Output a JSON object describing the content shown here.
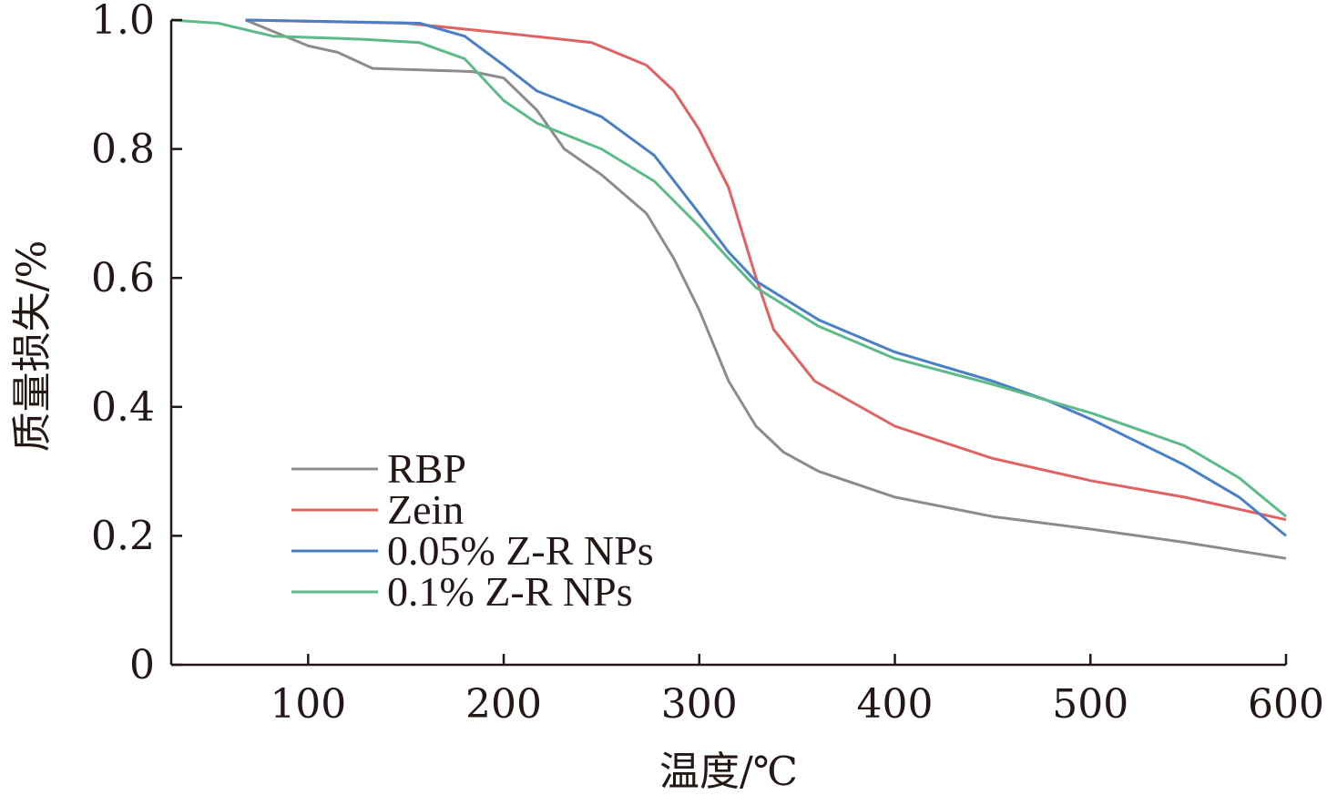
{
  "chart_data": {
    "type": "line",
    "xlabel": "温度/℃",
    "ylabel": "质量损失/%",
    "xlim": [
      30,
      600
    ],
    "ylim": [
      0,
      1.0
    ],
    "xticks": [
      100,
      200,
      300,
      400,
      500,
      600
    ],
    "xtick_labels": [
      "100",
      "200",
      "300",
      "400",
      "500",
      "600"
    ],
    "yticks": [
      0,
      0.2,
      0.4,
      0.6,
      0.8,
      1.0
    ],
    "ytick_labels": [
      "0",
      "0.2",
      "0.4",
      "0.6",
      "0.8",
      "1.0"
    ],
    "grid": false,
    "legend_placement": "bottom-left",
    "series": [
      {
        "name": "RBP",
        "color": "#8c8c8c",
        "x": [
          68,
          100,
          115,
          133,
          184,
          200,
          217,
          231,
          250,
          273,
          287,
          300,
          315,
          329,
          343,
          361,
          400,
          450,
          501,
          548,
          600
        ],
        "y": [
          1.0,
          0.96,
          0.95,
          0.925,
          0.92,
          0.91,
          0.86,
          0.8,
          0.76,
          0.7,
          0.63,
          0.55,
          0.44,
          0.37,
          0.33,
          0.3,
          0.26,
          0.23,
          0.21,
          0.19,
          0.165
        ]
      },
      {
        "name": "Zein",
        "color": "#e06262",
        "x": [
          68,
          150,
          200,
          245,
          273,
          287,
          300,
          315,
          329,
          338,
          359,
          400,
          450,
          501,
          548,
          600
        ],
        "y": [
          1.0,
          0.995,
          0.98,
          0.965,
          0.93,
          0.89,
          0.83,
          0.74,
          0.6,
          0.52,
          0.44,
          0.37,
          0.32,
          0.285,
          0.26,
          0.225
        ],
        "_": null
      },
      {
        "name": "0.05% Z-R NPs",
        "color": "#4a7fc8",
        "x": [
          68,
          157,
          180,
          200,
          217,
          250,
          277,
          300,
          315,
          329,
          361,
          400,
          450,
          478,
          501,
          548,
          576,
          600
        ],
        "y": [
          1.0,
          0.995,
          0.975,
          0.93,
          0.89,
          0.85,
          0.79,
          0.7,
          0.64,
          0.595,
          0.535,
          0.485,
          0.44,
          0.41,
          0.38,
          0.31,
          0.26,
          0.2
        ]
      },
      {
        "name": "0.1% Z-R NPs",
        "color": "#5dbb8a",
        "x": [
          30,
          54,
          82,
          129,
          157,
          180,
          200,
          217,
          250,
          277,
          300,
          315,
          329,
          361,
          400,
          450,
          478,
          501,
          548,
          576,
          600
        ],
        "y": [
          1.0,
          0.995,
          0.975,
          0.97,
          0.965,
          0.94,
          0.875,
          0.84,
          0.8,
          0.75,
          0.68,
          0.63,
          0.585,
          0.525,
          0.475,
          0.435,
          0.41,
          0.39,
          0.34,
          0.29,
          0.23
        ]
      }
    ]
  }
}
